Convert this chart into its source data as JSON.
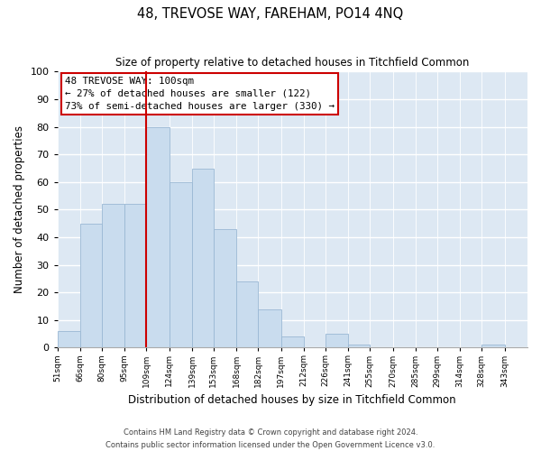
{
  "title": "48, TREVOSE WAY, FAREHAM, PO14 4NQ",
  "subtitle": "Size of property relative to detached houses in Titchfield Common",
  "xlabel": "Distribution of detached houses by size in Titchfield Common",
  "ylabel": "Number of detached properties",
  "bar_color": "#c9dcee",
  "bar_edge_color": "#9ab8d4",
  "background_color": "#dde8f3",
  "annotation_text": "48 TREVOSE WAY: 100sqm\n← 27% of detached houses are smaller (122)\n73% of semi-detached houses are larger (330) →",
  "vline_x": 109,
  "vline_color": "#cc0000",
  "footer_line1": "Contains HM Land Registry data © Crown copyright and database right 2024.",
  "footer_line2": "Contains public sector information licensed under the Open Government Licence v3.0.",
  "categories": [
    "51sqm",
    "66sqm",
    "80sqm",
    "95sqm",
    "109sqm",
    "124sqm",
    "139sqm",
    "153sqm",
    "168sqm",
    "182sqm",
    "197sqm",
    "212sqm",
    "226sqm",
    "241sqm",
    "255sqm",
    "270sqm",
    "285sqm",
    "299sqm",
    "314sqm",
    "328sqm",
    "343sqm"
  ],
  "bin_edges": [
    51,
    66,
    80,
    95,
    109,
    124,
    139,
    153,
    168,
    182,
    197,
    212,
    226,
    241,
    255,
    270,
    285,
    299,
    314,
    328,
    343,
    358
  ],
  "values": [
    6,
    45,
    52,
    52,
    80,
    60,
    65,
    43,
    24,
    14,
    4,
    0,
    5,
    1,
    0,
    0,
    0,
    0,
    0,
    1,
    0
  ],
  "ylim": [
    0,
    100
  ],
  "yticks": [
    0,
    10,
    20,
    30,
    40,
    50,
    60,
    70,
    80,
    90,
    100
  ]
}
